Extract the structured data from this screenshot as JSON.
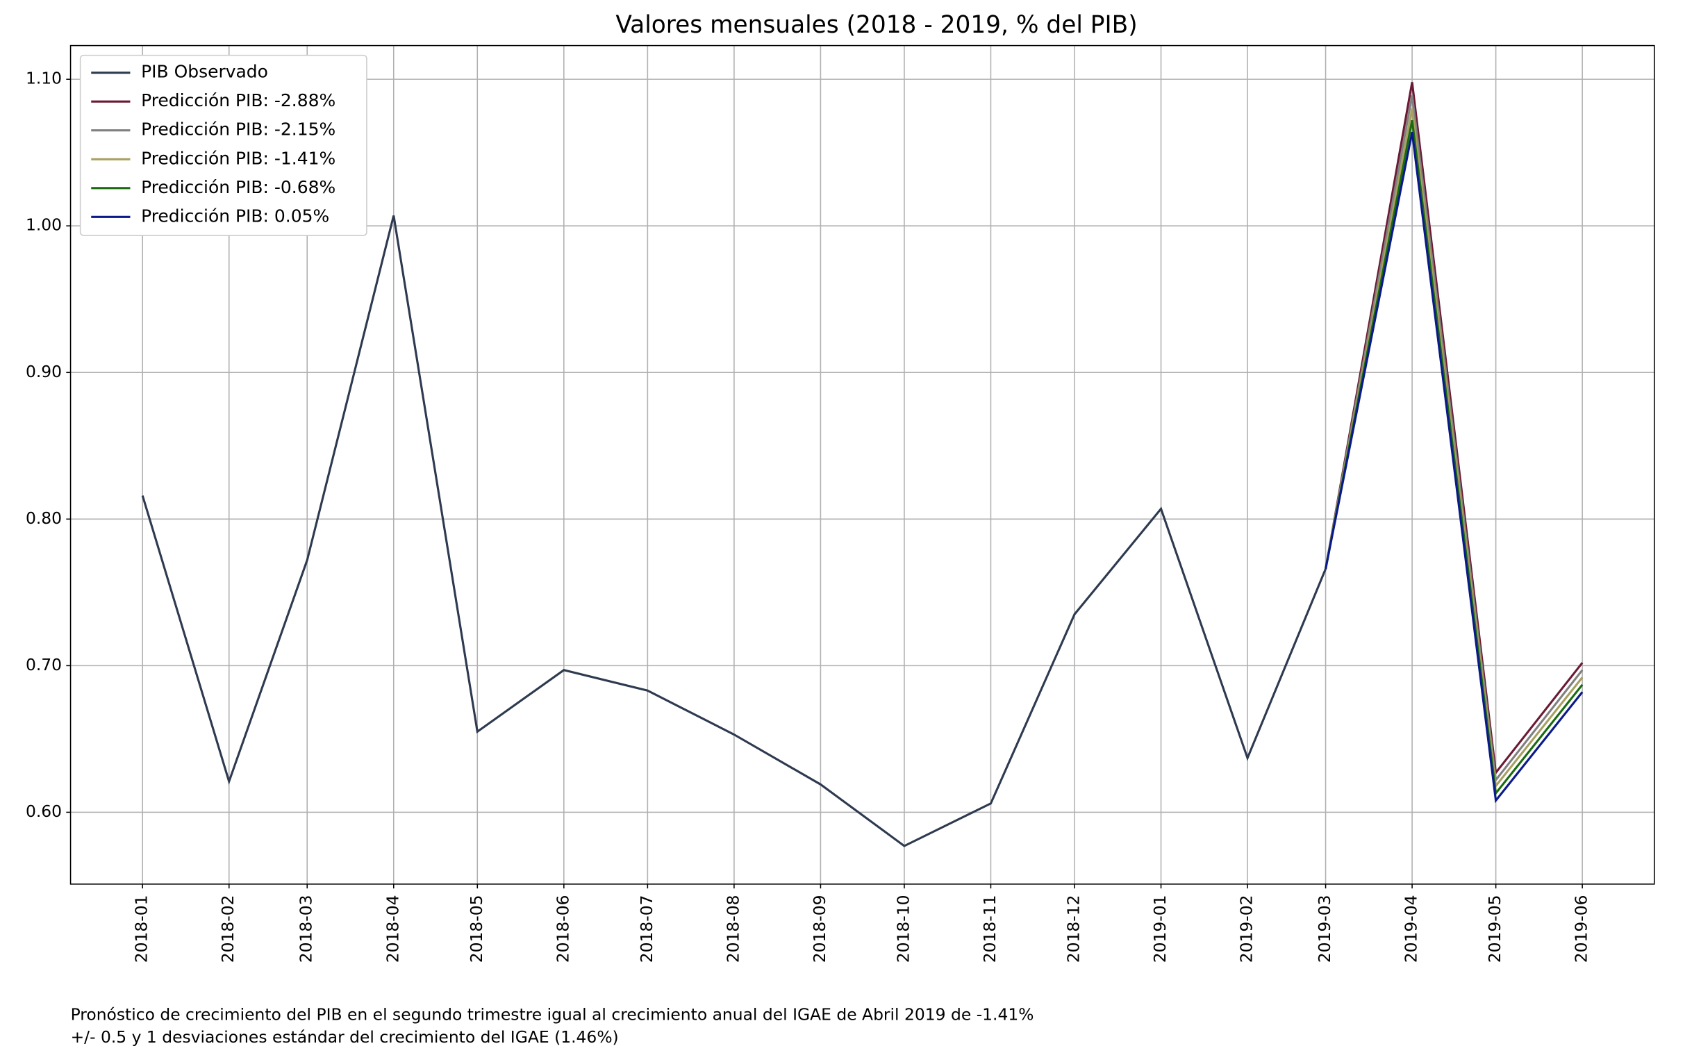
{
  "chart_data": {
    "type": "line",
    "title": "Valores mensuales (2018 - 2019, % del PIB)",
    "x": [
      "2018-01",
      "2018-02",
      "2018-03",
      "2018-04",
      "2018-05",
      "2018-06",
      "2018-07",
      "2018-08",
      "2018-09",
      "2018-10",
      "2018-11",
      "2018-12",
      "2019-01",
      "2019-02",
      "2019-03",
      "2019-04",
      "2019-05",
      "2019-06"
    ],
    "series": [
      {
        "name": "PIB Observado",
        "color": "#2e3a4f",
        "values": [
          0.816,
          0.621,
          0.772,
          1.007,
          0.655,
          0.697,
          0.683,
          0.653,
          0.619,
          0.577,
          0.606,
          0.735,
          0.807,
          0.637,
          0.766,
          null,
          null,
          null
        ]
      },
      {
        "name": "Predicción PIB: -2.88%",
        "color": "#6b1a33",
        "values": [
          null,
          null,
          null,
          null,
          null,
          null,
          null,
          null,
          null,
          null,
          null,
          null,
          null,
          null,
          0.766,
          1.098,
          0.627,
          0.702
        ]
      },
      {
        "name": "Predicción PIB: -2.15%",
        "color": "#808080",
        "values": [
          null,
          null,
          null,
          null,
          null,
          null,
          null,
          null,
          null,
          null,
          null,
          null,
          null,
          null,
          0.766,
          1.089,
          0.622,
          0.697
        ]
      },
      {
        "name": "Predicción PIB: -1.41%",
        "color": "#a8a060",
        "values": [
          null,
          null,
          null,
          null,
          null,
          null,
          null,
          null,
          null,
          null,
          null,
          null,
          null,
          null,
          0.766,
          1.08,
          0.618,
          0.692
        ]
      },
      {
        "name": "Predicción PIB: -0.68%",
        "color": "#1a6b10",
        "values": [
          null,
          null,
          null,
          null,
          null,
          null,
          null,
          null,
          null,
          null,
          null,
          null,
          null,
          null,
          0.766,
          1.072,
          0.613,
          0.687
        ]
      },
      {
        "name": "Predicción PIB: 0.05%",
        "color": "#0a1a8a",
        "values": [
          null,
          null,
          null,
          null,
          null,
          null,
          null,
          null,
          null,
          null,
          null,
          null,
          null,
          null,
          0.766,
          1.064,
          0.608,
          0.682
        ]
      }
    ],
    "ylim": [
      0.551,
      1.123
    ],
    "yticks": [
      {
        "value": 0.6,
        "label": "0.60"
      },
      {
        "value": 0.7,
        "label": "0.70"
      },
      {
        "value": 0.8,
        "label": "0.80"
      },
      {
        "value": 0.9,
        "label": "0.90"
      },
      {
        "value": 1.0,
        "label": "1.00"
      },
      {
        "value": 1.1,
        "label": "1.10"
      }
    ],
    "grid": true,
    "legend": "upper left",
    "annotations": [
      "Pronóstico de crecimiento del PIB en el segundo trimestre igual al crecimiento anual del IGAE de Abril 2019 de -1.41%",
      "+/- 0.5 y 1 desviaciones estándar del crecimiento del IGAE (1.46%)"
    ]
  }
}
